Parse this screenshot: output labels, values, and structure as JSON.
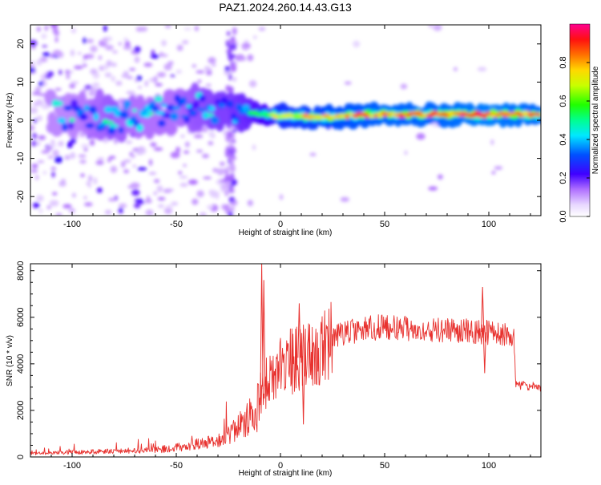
{
  "figure": {
    "title": "PAZ1.2024.260.14.43.G13"
  },
  "chart_data": [
    {
      "type": "heatmap",
      "xlabel": "Height of straight line (km)",
      "ylabel": "Frequency (Hz)",
      "xlim": [
        -120,
        125
      ],
      "ylim": [
        -25,
        25
      ],
      "xticks": [
        -100,
        -50,
        0,
        50,
        100
      ],
      "yticks": [
        -20,
        -10,
        0,
        10,
        20
      ],
      "colorbar": {
        "label": "Normalized spectral amplitude",
        "range": [
          0,
          1
        ],
        "ticks": [
          0.0,
          0.2,
          0.4,
          0.6,
          0.8
        ],
        "tick_labels": [
          "0.0",
          "0.2",
          "0.4",
          "0.6",
          "0.8"
        ],
        "colormap": "rainbow-white-to-magenta"
      },
      "ridge": [
        {
          "x": -100,
          "y": 1.5,
          "amp": 0.35
        },
        {
          "x": -90,
          "y": 1.5,
          "amp": 0.4
        },
        {
          "x": -80,
          "y": 0.5,
          "amp": 0.45
        },
        {
          "x": -70,
          "y": 1.0,
          "amp": 0.4
        },
        {
          "x": -60,
          "y": 2.0,
          "amp": 0.4
        },
        {
          "x": -50,
          "y": 2.5,
          "amp": 0.4
        },
        {
          "x": -40,
          "y": 3.5,
          "amp": 0.45
        },
        {
          "x": -30,
          "y": 2.5,
          "amp": 0.5
        },
        {
          "x": -25,
          "y": 2.0,
          "amp": 0.5
        },
        {
          "x": -15,
          "y": 2.0,
          "amp": 0.55
        },
        {
          "x": -5,
          "y": 1.5,
          "amp": 0.65
        },
        {
          "x": 0,
          "y": 1.0,
          "amp": 0.8
        },
        {
          "x": 10,
          "y": 1.0,
          "amp": 0.85
        },
        {
          "x": 25,
          "y": 1.0,
          "amp": 0.9
        },
        {
          "x": 50,
          "y": 1.5,
          "amp": 0.95
        },
        {
          "x": 75,
          "y": 1.5,
          "amp": 0.95
        },
        {
          "x": 100,
          "y": 1.5,
          "amp": 1.0
        },
        {
          "x": 125,
          "y": 1.5,
          "amp": 0.95
        }
      ]
    },
    {
      "type": "line",
      "xlabel": "Height of straight line (km)",
      "ylabel": "SNR (10 * v/v)",
      "xlim": [
        -120,
        125
      ],
      "ylim": [
        0,
        8300
      ],
      "xticks": [
        -100,
        -50,
        0,
        50,
        100
      ],
      "yticks": [
        0,
        2000,
        4000,
        6000,
        8000
      ],
      "color": "#e8322f",
      "envelope": [
        {
          "x": -120,
          "y": 150
        },
        {
          "x": -100,
          "y": 200
        },
        {
          "x": -80,
          "y": 250
        },
        {
          "x": -60,
          "y": 300
        },
        {
          "x": -50,
          "y": 400
        },
        {
          "x": -40,
          "y": 550
        },
        {
          "x": -30,
          "y": 700
        },
        {
          "x": -25,
          "y": 900
        },
        {
          "x": -20,
          "y": 1300
        },
        {
          "x": -15,
          "y": 1700
        },
        {
          "x": -12,
          "y": 1500
        },
        {
          "x": -10,
          "y": 2800
        },
        {
          "x": -5,
          "y": 3400
        },
        {
          "x": 0,
          "y": 3900
        },
        {
          "x": 5,
          "y": 4100
        },
        {
          "x": 10,
          "y": 4300
        },
        {
          "x": 15,
          "y": 4500
        },
        {
          "x": 20,
          "y": 4800
        },
        {
          "x": 25,
          "y": 5100
        },
        {
          "x": 30,
          "y": 5300
        },
        {
          "x": 40,
          "y": 5500
        },
        {
          "x": 50,
          "y": 5600
        },
        {
          "x": 60,
          "y": 5550
        },
        {
          "x": 70,
          "y": 5500
        },
        {
          "x": 80,
          "y": 5450
        },
        {
          "x": 90,
          "y": 5400
        },
        {
          "x": 100,
          "y": 5350
        },
        {
          "x": 110,
          "y": 5300
        },
        {
          "x": 112,
          "y": 5300
        },
        {
          "x": 113,
          "y": 3100
        },
        {
          "x": 125,
          "y": 3000
        }
      ],
      "spikes": [
        {
          "x": -9,
          "y": 8300
        },
        {
          "x": -8,
          "y": 7600
        },
        {
          "x": 9,
          "y": 6600
        },
        {
          "x": 11,
          "y": 1400
        },
        {
          "x": 97,
          "y": 7300
        },
        {
          "x": 98,
          "y": 3600
        }
      ]
    }
  ]
}
